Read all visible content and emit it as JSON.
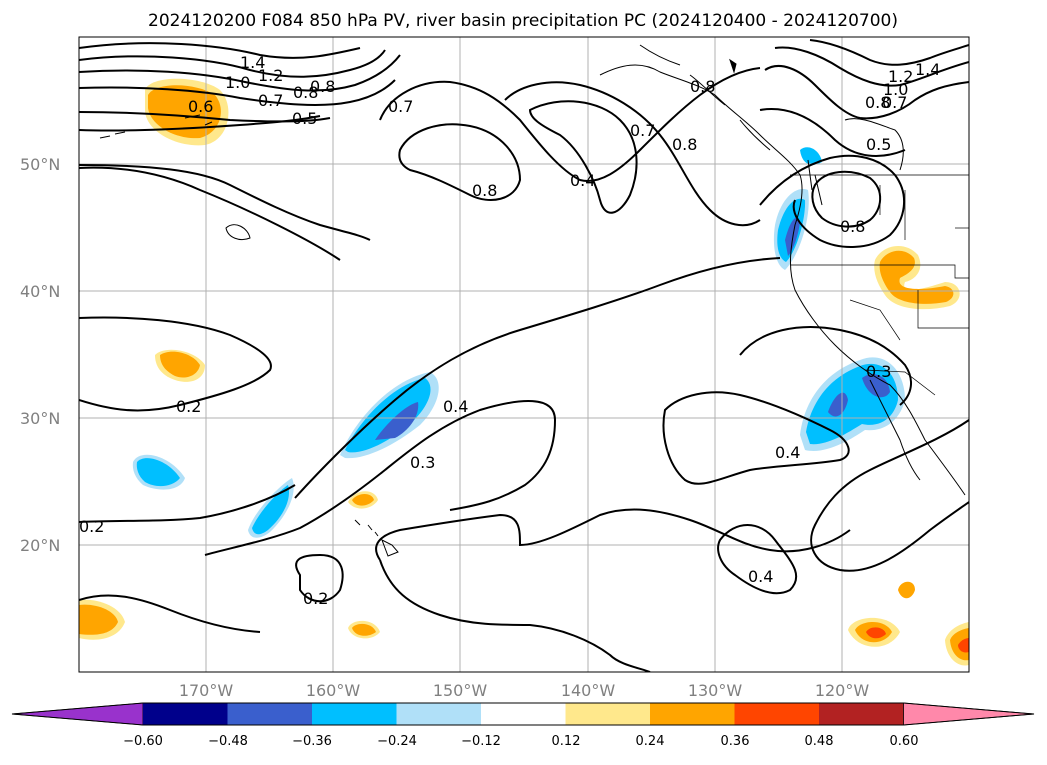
{
  "title": "2024120200 F084 850 hPa PV, river basin precipitation PC (2024120400 - 2024120700)",
  "map": {
    "lon_range": [
      -180,
      -110
    ],
    "lat_range": [
      10,
      60
    ],
    "lon_ticks": [
      "170°W",
      "160°W",
      "150°W",
      "140°W",
      "130°W",
      "120°W"
    ],
    "lat_ticks": [
      "50°N",
      "40°N",
      "30°N",
      "20°N"
    ],
    "grid": true
  },
  "contour_labels": [
    "1.4",
    "1.2",
    "1.0",
    "0.8",
    "0.8",
    "0.7",
    "0.6",
    "0.5",
    "0.7",
    "0.8",
    "0.4",
    "0.7",
    "0.8",
    "0.8",
    "1.2",
    "1.4",
    "1.0",
    "0.8",
    "0.7",
    "0.5",
    "0.8",
    "0.4",
    "0.3",
    "0.3",
    "0.4",
    "0.2",
    "0.2",
    "0.2",
    "0.4"
  ],
  "colorbar": {
    "ticks": [
      "−0.60",
      "−0.48",
      "−0.36",
      "−0.24",
      "−0.12",
      "0.12",
      "0.24",
      "0.36",
      "0.48",
      "0.60"
    ],
    "colors": [
      "#9932cc",
      "#00008b",
      "#3a5fcd",
      "#00bfff",
      "#b0e0f8",
      "#ffffff",
      "#ffe88c",
      "#ffa500",
      "#ff4500",
      "#b22222",
      "#ff88aa"
    ]
  }
}
